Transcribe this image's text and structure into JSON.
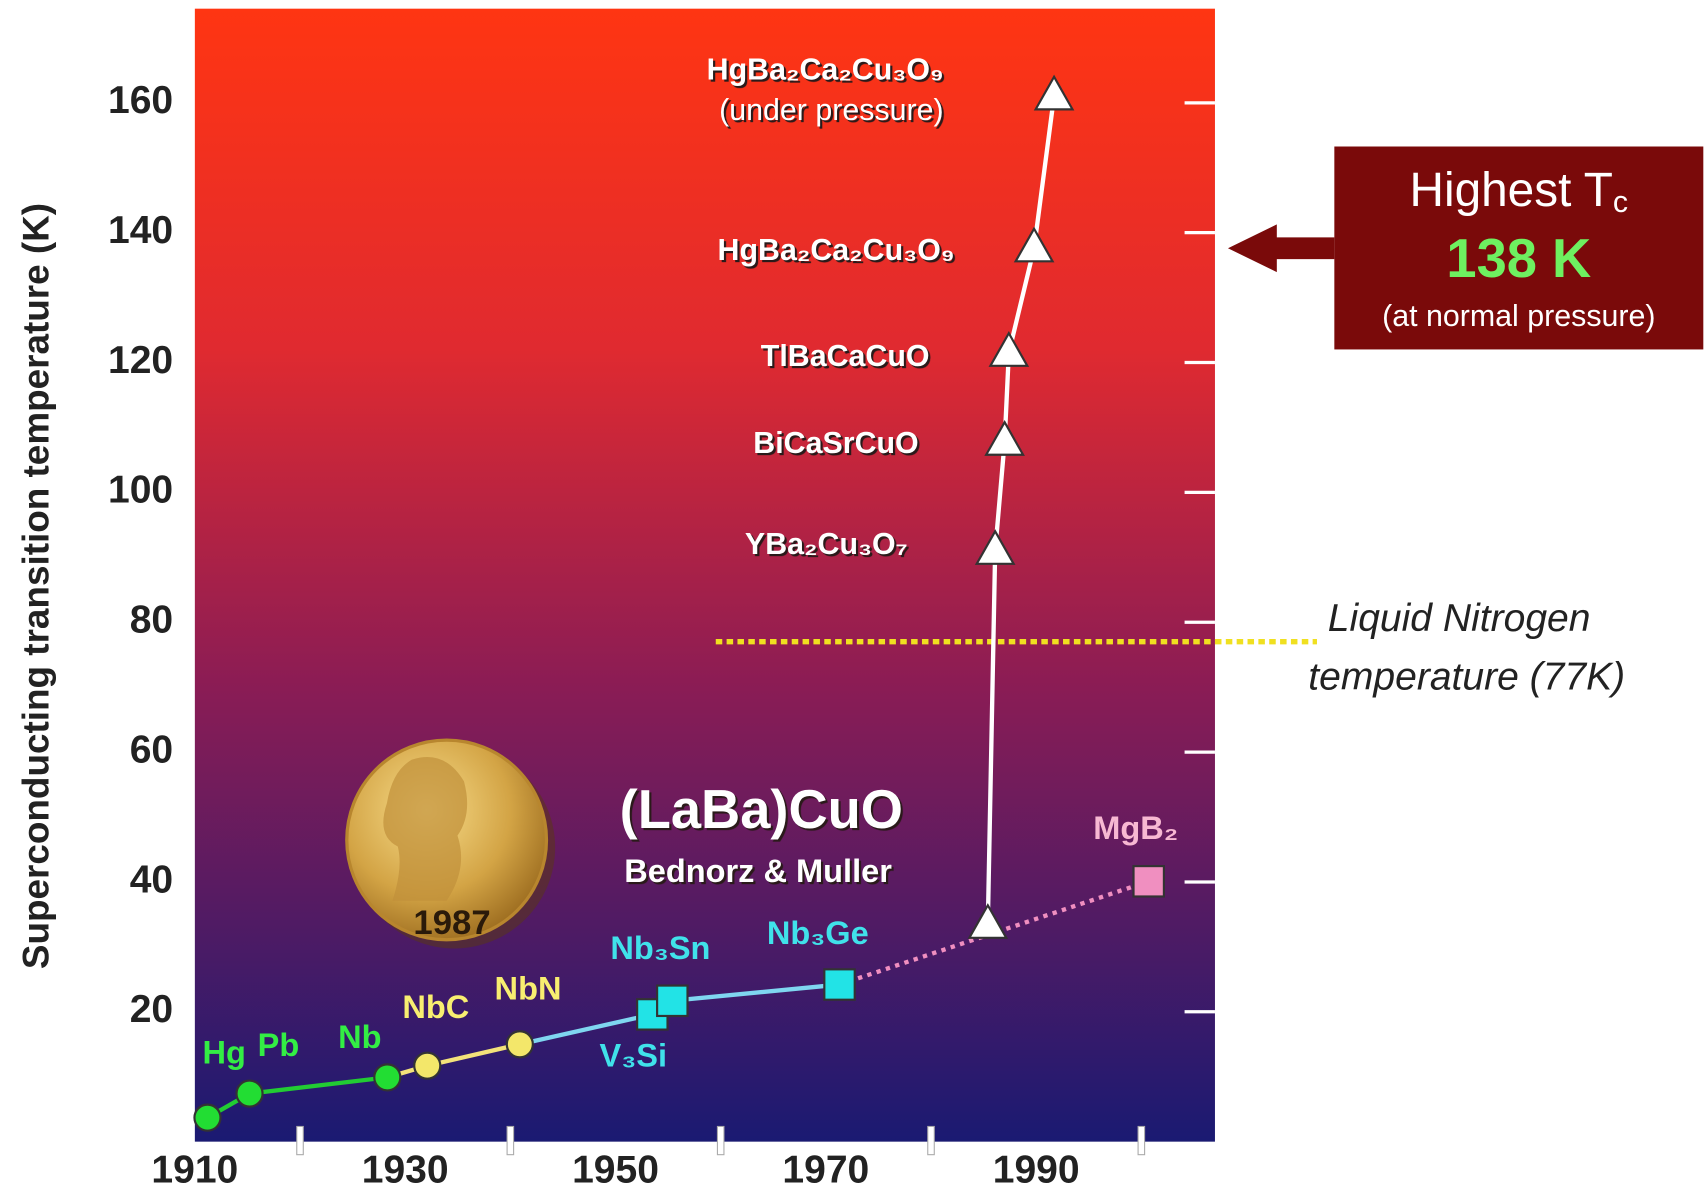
{
  "chart_data": {
    "type": "scatter",
    "y_label": "Superconducting transition temperature (K)",
    "xlim": [
      1910,
      2007
    ],
    "ylim": [
      0,
      174.5
    ],
    "xticks": [
      1910,
      1930,
      1950,
      1970,
      1990
    ],
    "xminorticks": [
      1920,
      1940,
      1960,
      1980,
      2000
    ],
    "yticks": [
      20,
      40,
      60,
      80,
      100,
      120,
      140,
      160
    ],
    "series": [
      {
        "marker": "circle",
        "color": "#22dd33",
        "label_color": "#33ee44",
        "line_color": "#22cc33",
        "labels": [
          "Hg",
          "Pb",
          "Nb"
        ],
        "x": [
          1911.2,
          1915.2,
          1928.3
        ],
        "values": [
          3.7,
          7.4,
          9.9
        ]
      },
      {
        "marker": "circle",
        "color": "#f3e76a",
        "label_color": "#f8ee70",
        "line_color": "#f3e27a",
        "labels": [
          "NbC",
          "NbN"
        ],
        "x": [
          1932.1,
          1940.9
        ],
        "values": [
          11.7,
          15
        ]
      },
      {
        "marker": "square",
        "color": "#22e3e6",
        "label_color": "#40e2ea",
        "line_color": "#7fd6f0",
        "labels": [
          "V₃Si",
          "Nb₃Sn",
          "Nb₃Ge"
        ],
        "x": [
          1953.5,
          1955.4,
          1971.3
        ],
        "values": [
          19.6,
          21.7,
          24.2
        ]
      },
      {
        "marker": "square",
        "color": "#f08fc0",
        "label_color": "#f7b8d2",
        "line_color": "#f08fc0",
        "labels": [
          "MgB₂"
        ],
        "x": [
          2000.7
        ],
        "values": [
          40.1
        ]
      },
      {
        "marker": "triangle",
        "color": "#ffffff",
        "label_color": "#ffffff",
        "line_color": "#ffffff",
        "labels": [
          null,
          "YBa₂Cu₃O₇",
          "BiCaSrCuO",
          "TlBaCaCuO",
          "HgBa₂Ca₂Cu₃O₉",
          [
            "HgBa₂Ca₂Cu₃O₉",
            "(under pressure)"
          ]
        ],
        "x": [
          1985.4,
          1986.1,
          1987,
          1987.4,
          1989.8,
          1991.7
        ],
        "values": [
          33.4,
          91,
          107.8,
          121.5,
          137.6,
          161
        ]
      }
    ],
    "annotations": {
      "discovery": "(LaBa)CuO",
      "authors": "Bednorz & Muller",
      "medal_year": "1987"
    },
    "reference_line": {
      "value": 77,
      "color": "#f0e020",
      "label": [
        "Liquid Nitrogen",
        "temperature (77K)"
      ]
    },
    "callout": {
      "title": "Highest T",
      "title_sub": "c",
      "value_text": "138 K",
      "note": "(at normal pressure)",
      "value_color": "#6ef060",
      "box_color": "#7a0a0a"
    }
  }
}
